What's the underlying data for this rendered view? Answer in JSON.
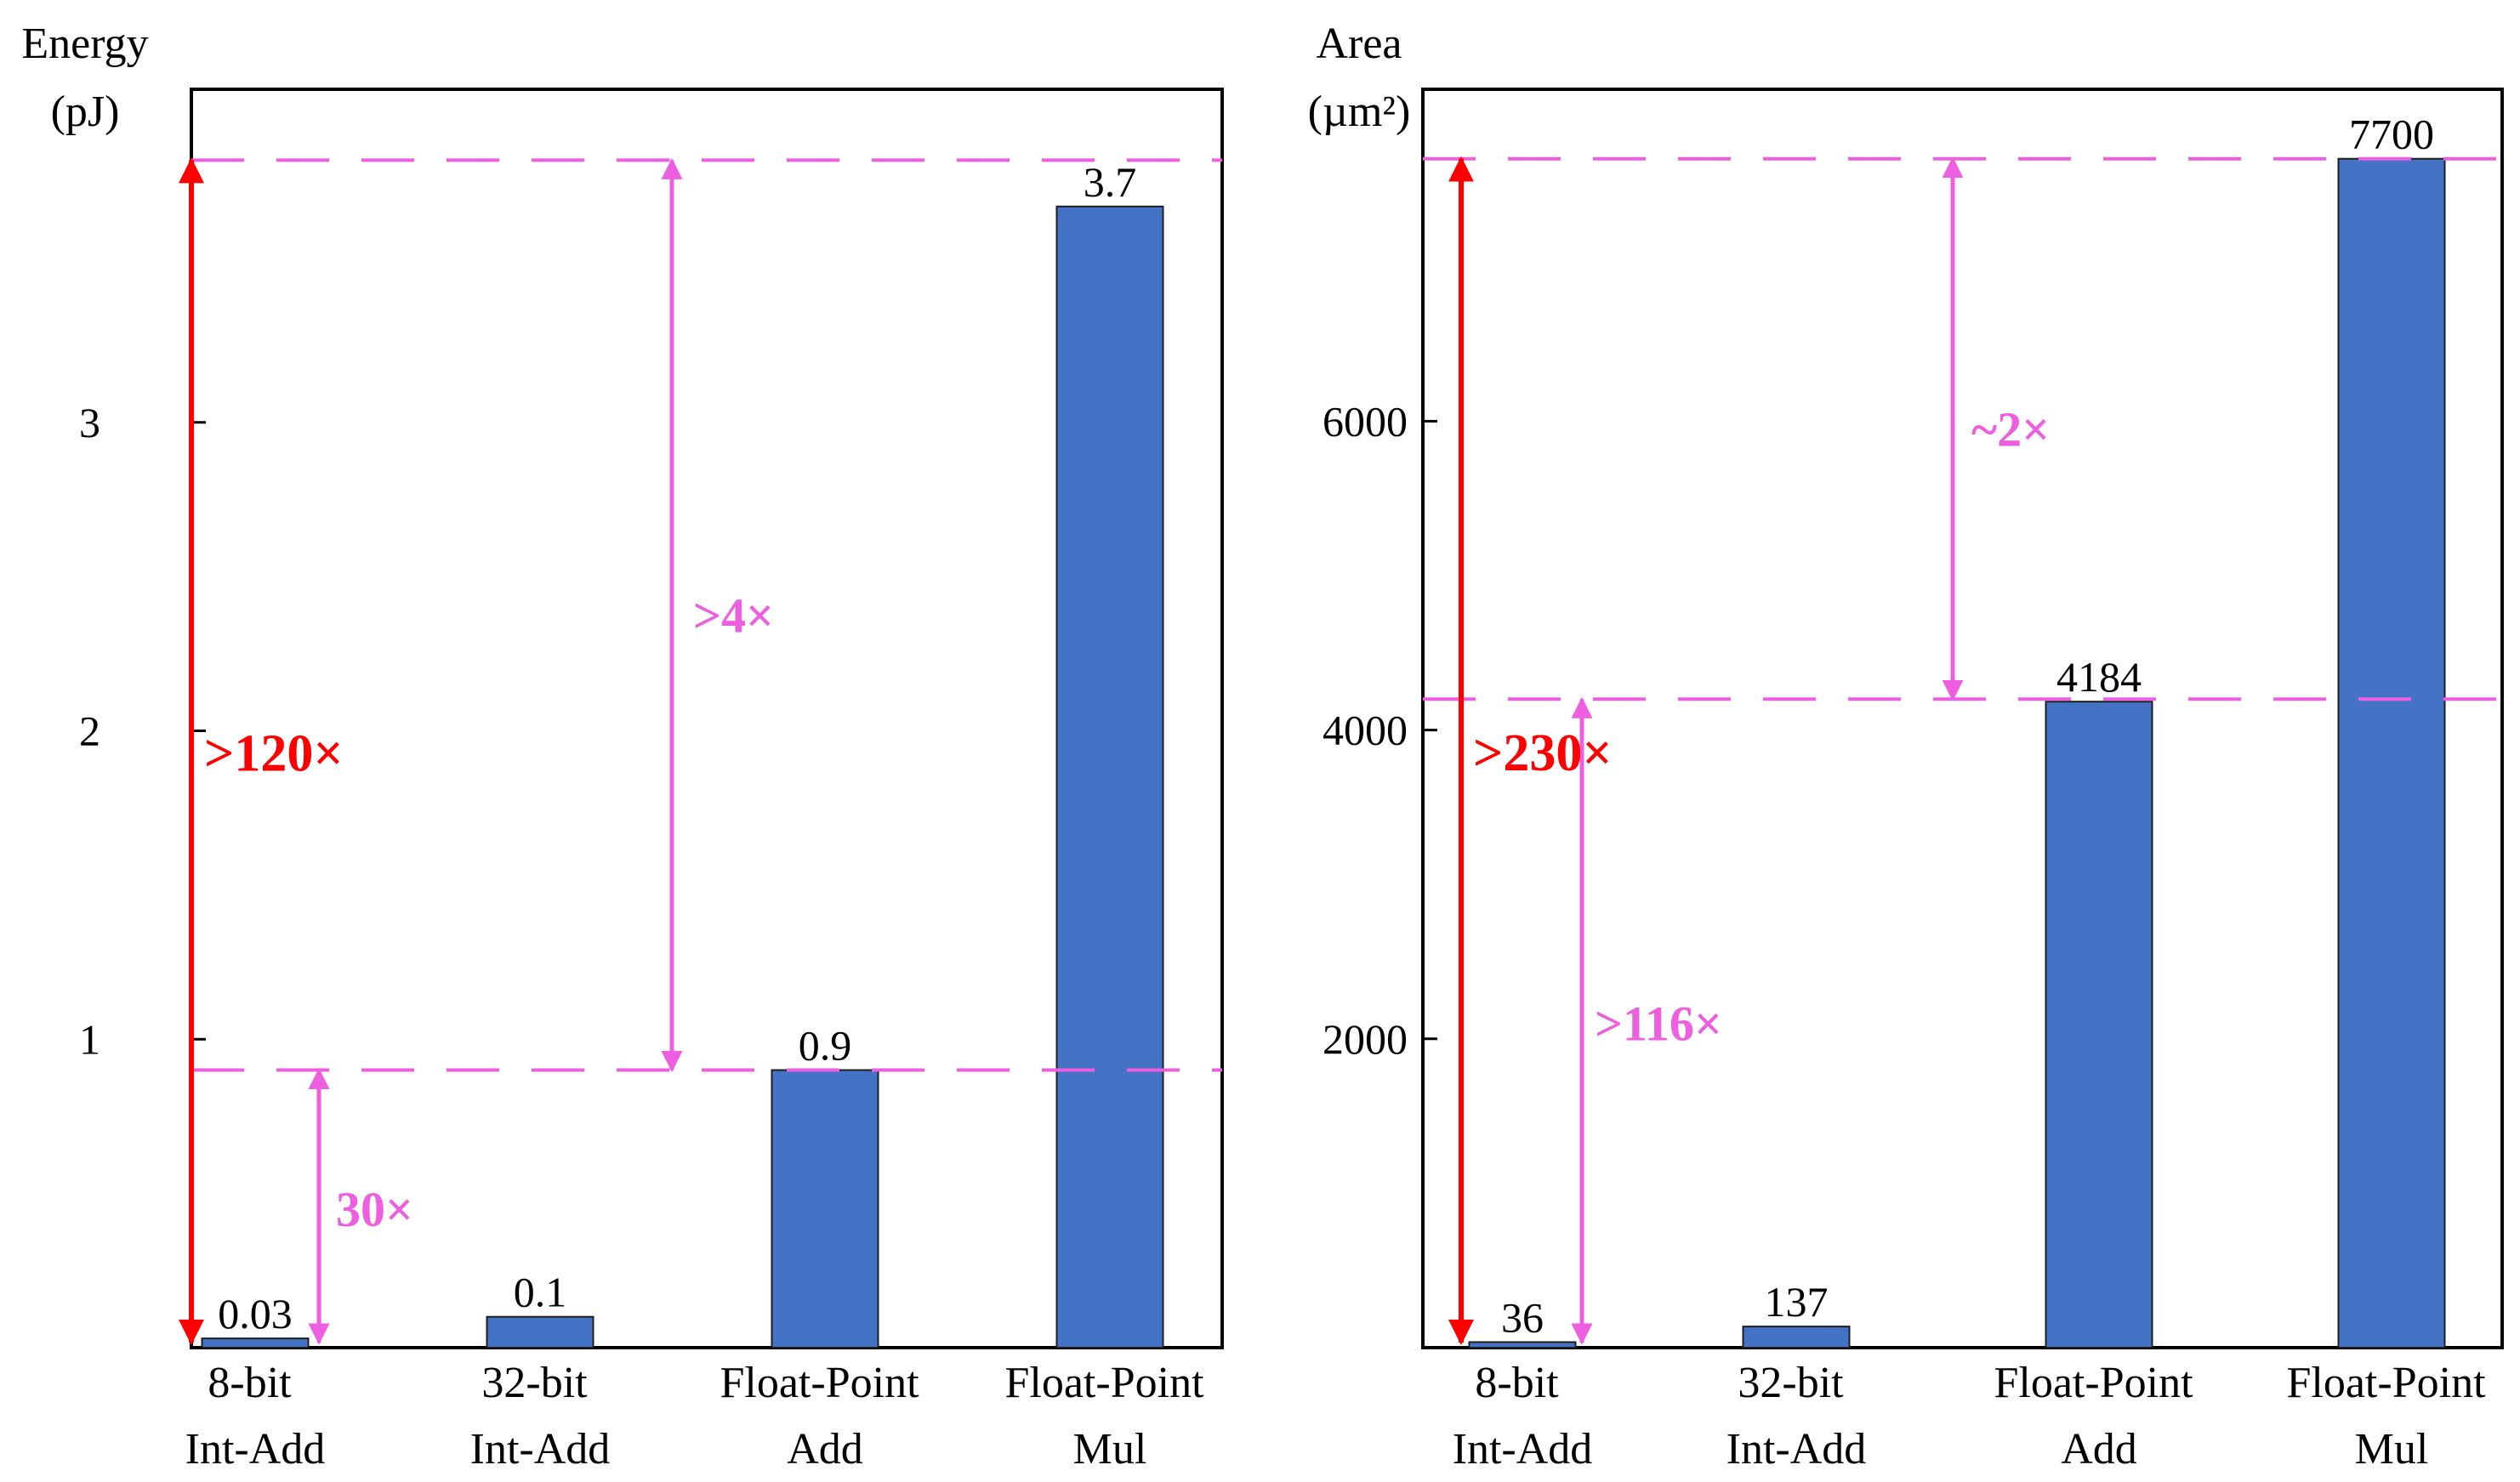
{
  "colors": {
    "bar": "#4472c4",
    "bar_edge": "#1f1f1f",
    "axis": "#000000",
    "guide": "#ee5ee0",
    "highlight": "#ff0000"
  },
  "chart_data": [
    {
      "type": "bar",
      "ylabel": "Energy",
      "yunit": "(pJ)",
      "categories": [
        [
          "8-bit",
          "Int-Add"
        ],
        [
          "32-bit",
          "Int-Add"
        ],
        [
          "Float-Point",
          "Add"
        ],
        [
          "Float-Point",
          "Mul"
        ]
      ],
      "values": [
        0.03,
        0.1,
        0.9,
        3.7
      ],
      "value_labels": [
        "0.03",
        "0.1",
        "0.9",
        "3.7"
      ],
      "ylim": [
        0,
        4.08
      ],
      "yticks": [
        1,
        2,
        3
      ],
      "ytick_labels": [
        "1",
        "2",
        "3"
      ],
      "guides": [
        0.9,
        3.85
      ],
      "ratios": [
        {
          "label": "30×",
          "from": 0.0,
          "to": 0.9,
          "color": "guide",
          "category": 0
        },
        {
          "label": ">4×",
          "from": 0.9,
          "to": 3.85,
          "color": "guide",
          "category": 1
        },
        {
          "label": ">120×",
          "from": 0.0,
          "to": 3.85,
          "color": "highlight",
          "category": 0
        }
      ]
    },
    {
      "type": "bar",
      "ylabel": "Area",
      "yunit": "(µm²)",
      "categories": [
        [
          "8-bit",
          "Int-Add"
        ],
        [
          "32-bit",
          "Int-Add"
        ],
        [
          "Float-Point",
          "Add"
        ],
        [
          "Float-Point",
          "Mul"
        ]
      ],
      "values": [
        36,
        137,
        4184,
        7700
      ],
      "value_labels": [
        "36",
        "137",
        "4184",
        "7700"
      ],
      "ylim": [
        0,
        8150
      ],
      "yticks": [
        2000,
        4000,
        6000
      ],
      "ytick_labels": [
        "2000",
        "4000",
        "6000"
      ],
      "guides": [
        4200,
        7700
      ],
      "ratios": [
        {
          "label": ">116×",
          "from": 0,
          "to": 4200,
          "color": "guide",
          "category": 0
        },
        {
          "label": "~2×",
          "from": 4200,
          "to": 7700,
          "color": "guide",
          "category": 2
        },
        {
          "label": ">230×",
          "from": 0,
          "to": 7700,
          "color": "highlight",
          "category": 0
        }
      ]
    }
  ]
}
